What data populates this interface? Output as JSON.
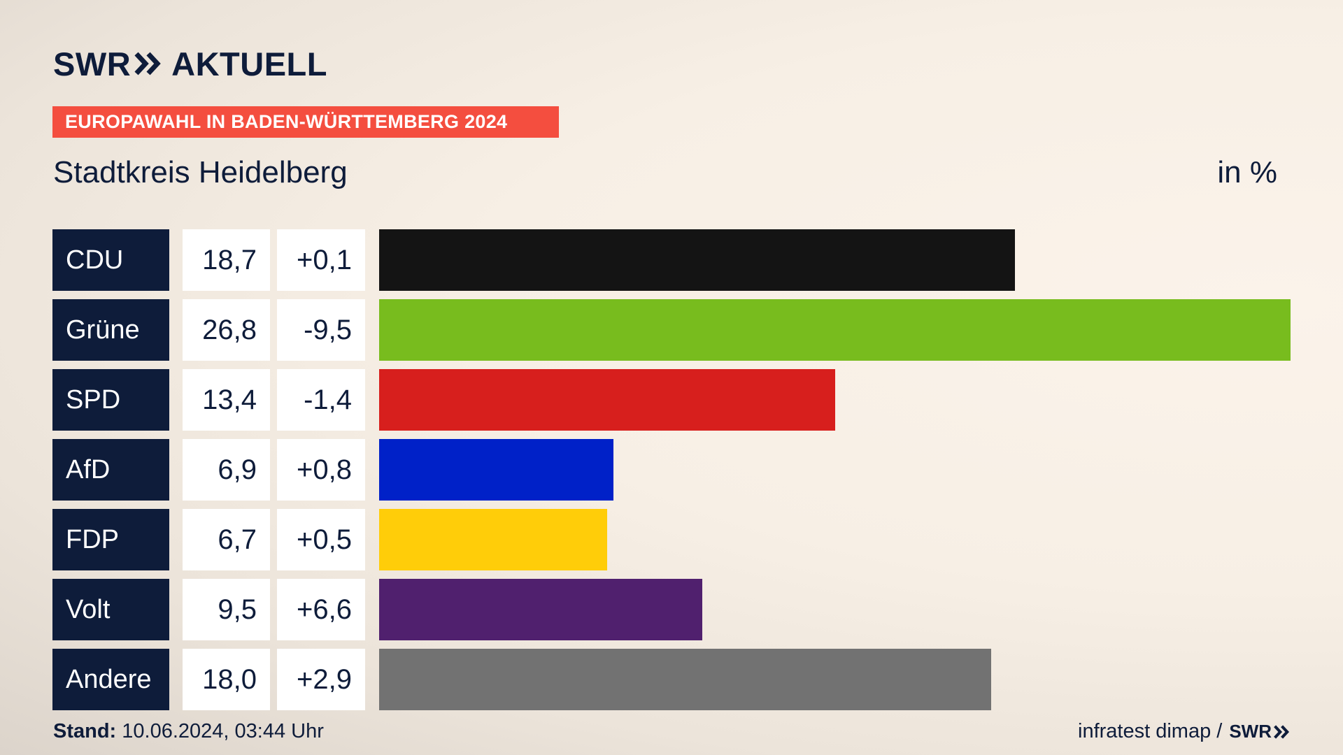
{
  "brand": {
    "swr": "SWR",
    "product": "AKTUELL"
  },
  "banner": "EUROPAWAHL IN BADEN-WÜRTTEMBERG 2024",
  "subtitle": "Stadtkreis Heidelberg",
  "unit": "in %",
  "chart_data": {
    "type": "bar",
    "orientation": "horizontal",
    "title": "Stadtkreis Heidelberg",
    "unit": "in %",
    "categories": [
      "CDU",
      "Grüne",
      "SPD",
      "AfD",
      "FDP",
      "Volt",
      "Andere"
    ],
    "values": [
      18.7,
      26.8,
      13.4,
      6.9,
      6.7,
      9.5,
      18.0
    ],
    "value_labels": [
      "18,7",
      "26,8",
      "13,4",
      "6,9",
      "6,7",
      "9,5",
      "18,0"
    ],
    "changes": [
      "+0,1",
      "-9,5",
      "-1,4",
      "+0,8",
      "+0,5",
      "+6,6",
      "+2,9"
    ],
    "colors": [
      "#141414",
      "#78bc1e",
      "#d71f1d",
      "#0021c8",
      "#ffcd09",
      "#50206e",
      "#727272"
    ],
    "xlim": [
      0,
      26.8
    ],
    "grid": false
  },
  "footer": {
    "stand_label": "Stand:",
    "stand_value": "10.06.2024, 03:44 Uhr",
    "source": "infratest dimap /",
    "source_brand": "SWR"
  }
}
